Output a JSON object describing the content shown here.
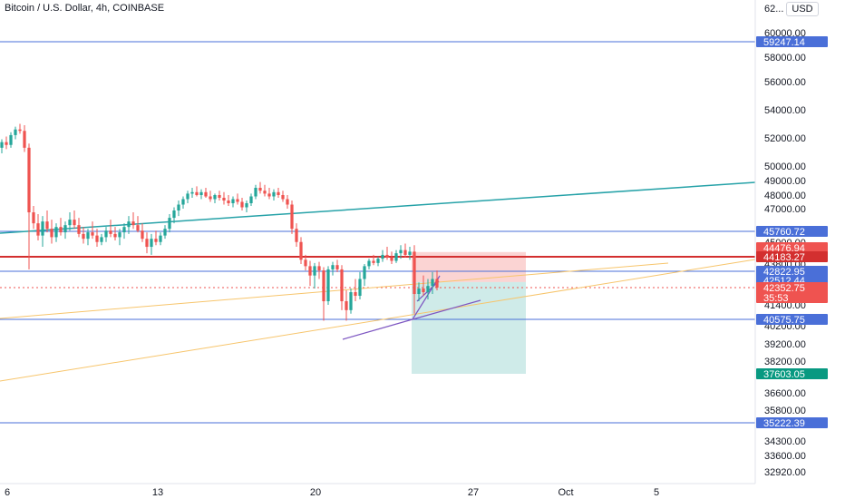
{
  "title": "Bitcoin / U.S. Dollar, 4h, COINBASE",
  "currency": "USD",
  "colors": {
    "up": "#26a69a",
    "down": "#ef5350",
    "horizontal_line": "#4a6fd8",
    "resistance_line": "#d32f2f",
    "trend_line": "#26a2a8",
    "fib_line": "#f7c56c",
    "wedge_line": "#7e57c2",
    "short_stop_zone": "rgba(239,83,80,0.25)",
    "short_target_zone": "rgba(38,166,154,0.22)"
  },
  "chart_data": {
    "type": "candlestick",
    "y_ticks": [
      "62...",
      "60000.00",
      "58000.00",
      "56000.00",
      "54000.00",
      "52000.00",
      "50000.00",
      "49000.00",
      "48000.00",
      "47000.00",
      "45000.00",
      "43800.00",
      "41400.00",
      "40200.00",
      "39200.00",
      "38200.00",
      "36600.00",
      "35800.00",
      "34300.00",
      "33600.00",
      "32920.00"
    ],
    "x_ticks": [
      "6",
      "13",
      "20",
      "27",
      "Oct",
      "5"
    ],
    "price_labels": [
      {
        "text": "59247.14",
        "value": 59247.14,
        "color": "#4a6fd8"
      },
      {
        "text": "45760.72",
        "value": 45760.72,
        "color": "#4a6fd8"
      },
      {
        "text": "44476.94",
        "value": 44476.94,
        "color": "#ef5350"
      },
      {
        "text": "44183.27",
        "value": 44183.27,
        "color": "#d32f2f"
      },
      {
        "text": "42822.95",
        "value": 42822.95,
        "color": "#4a6fd8"
      },
      {
        "text": "42512.44",
        "value": 42512.44,
        "color": "#4a6fd8"
      },
      {
        "text": "42352.75",
        "value": 42352.75,
        "color": "#ef5350",
        "countdown": "35:53"
      },
      {
        "text": "40575.75",
        "value": 40575.75,
        "color": "#4a6fd8"
      },
      {
        "text": "37603.05",
        "value": 37603.05,
        "color": "#089981"
      },
      {
        "text": "35222.39",
        "value": 35222.39,
        "color": "#4a6fd8"
      }
    ],
    "horizontal_levels": [
      59247.14,
      45760.72,
      44183.27,
      42822.95,
      40575.75,
      35222.39
    ],
    "position": {
      "kind": "short",
      "entry": 42512.44,
      "stop": 44476.94,
      "target": 37603.05
    },
    "candles": [
      {
        "o": 51300,
        "h": 51900,
        "l": 50900,
        "c": 51700
      },
      {
        "o": 51700,
        "h": 52100,
        "l": 51200,
        "c": 51500
      },
      {
        "o": 51500,
        "h": 52400,
        "l": 51300,
        "c": 52200
      },
      {
        "o": 52200,
        "h": 52800,
        "l": 51900,
        "c": 52600
      },
      {
        "o": 52600,
        "h": 53000,
        "l": 52300,
        "c": 52500
      },
      {
        "o": 52500,
        "h": 52900,
        "l": 51000,
        "c": 51300
      },
      {
        "o": 51300,
        "h": 51600,
        "l": 43000,
        "c": 46800
      },
      {
        "o": 46800,
        "h": 47200,
        "l": 45900,
        "c": 46200
      },
      {
        "o": 46200,
        "h": 46700,
        "l": 45200,
        "c": 45500
      },
      {
        "o": 45500,
        "h": 46600,
        "l": 44800,
        "c": 46300
      },
      {
        "o": 46300,
        "h": 46900,
        "l": 45700,
        "c": 45900
      },
      {
        "o": 45900,
        "h": 46400,
        "l": 45000,
        "c": 45400
      },
      {
        "o": 45400,
        "h": 46200,
        "l": 45100,
        "c": 46000
      },
      {
        "o": 46000,
        "h": 46500,
        "l": 45500,
        "c": 45700
      },
      {
        "o": 45700,
        "h": 46300,
        "l": 45300,
        "c": 46100
      },
      {
        "o": 46100,
        "h": 46800,
        "l": 45800,
        "c": 46400
      },
      {
        "o": 46400,
        "h": 46900,
        "l": 45900,
        "c": 46100
      },
      {
        "o": 46100,
        "h": 46500,
        "l": 45400,
        "c": 45600
      },
      {
        "o": 45600,
        "h": 46000,
        "l": 45000,
        "c": 45300
      },
      {
        "o": 45300,
        "h": 45900,
        "l": 44900,
        "c": 45700
      },
      {
        "o": 45700,
        "h": 46300,
        "l": 45300,
        "c": 45500
      },
      {
        "o": 45500,
        "h": 45900,
        "l": 44800,
        "c": 45100
      },
      {
        "o": 45100,
        "h": 45600,
        "l": 44900,
        "c": 45400
      },
      {
        "o": 45400,
        "h": 46000,
        "l": 45100,
        "c": 45800
      },
      {
        "o": 45800,
        "h": 46400,
        "l": 45400,
        "c": 45600
      },
      {
        "o": 45600,
        "h": 46000,
        "l": 45200,
        "c": 45400
      },
      {
        "o": 45400,
        "h": 45900,
        "l": 44900,
        "c": 45700
      },
      {
        "o": 45700,
        "h": 46200,
        "l": 45300,
        "c": 46000
      },
      {
        "o": 46000,
        "h": 46600,
        "l": 45600,
        "c": 46300
      },
      {
        "o": 46300,
        "h": 46800,
        "l": 45900,
        "c": 46100
      },
      {
        "o": 46100,
        "h": 46600,
        "l": 45700,
        "c": 45800
      },
      {
        "o": 45800,
        "h": 46200,
        "l": 45100,
        "c": 45300
      },
      {
        "o": 45300,
        "h": 45700,
        "l": 44400,
        "c": 44800
      },
      {
        "o": 44800,
        "h": 45600,
        "l": 44300,
        "c": 45300
      },
      {
        "o": 45300,
        "h": 45800,
        "l": 44900,
        "c": 45100
      },
      {
        "o": 45100,
        "h": 45700,
        "l": 44900,
        "c": 45500
      },
      {
        "o": 45500,
        "h": 46100,
        "l": 45300,
        "c": 45900
      },
      {
        "o": 45900,
        "h": 46700,
        "l": 45700,
        "c": 46500
      },
      {
        "o": 46500,
        "h": 47100,
        "l": 46200,
        "c": 46900
      },
      {
        "o": 46900,
        "h": 47600,
        "l": 46600,
        "c": 47300
      },
      {
        "o": 47300,
        "h": 47900,
        "l": 47000,
        "c": 47700
      },
      {
        "o": 47700,
        "h": 48300,
        "l": 47400,
        "c": 48100
      },
      {
        "o": 48100,
        "h": 48500,
        "l": 47800,
        "c": 48200
      },
      {
        "o": 48200,
        "h": 48600,
        "l": 47900,
        "c": 48000
      },
      {
        "o": 48000,
        "h": 48400,
        "l": 47700,
        "c": 48200
      },
      {
        "o": 48200,
        "h": 48500,
        "l": 47800,
        "c": 47900
      },
      {
        "o": 47900,
        "h": 48300,
        "l": 47500,
        "c": 47700
      },
      {
        "o": 47700,
        "h": 48100,
        "l": 47400,
        "c": 48000
      },
      {
        "o": 48000,
        "h": 48300,
        "l": 47600,
        "c": 47800
      },
      {
        "o": 47800,
        "h": 48200,
        "l": 47300,
        "c": 47600
      },
      {
        "o": 47600,
        "h": 48000,
        "l": 47200,
        "c": 47400
      },
      {
        "o": 47400,
        "h": 47900,
        "l": 47100,
        "c": 47700
      },
      {
        "o": 47700,
        "h": 48100,
        "l": 47300,
        "c": 47500
      },
      {
        "o": 47500,
        "h": 47800,
        "l": 46900,
        "c": 47100
      },
      {
        "o": 47100,
        "h": 47600,
        "l": 46800,
        "c": 47400
      },
      {
        "o": 47400,
        "h": 48100,
        "l": 47200,
        "c": 47900
      },
      {
        "o": 47900,
        "h": 48700,
        "l": 47700,
        "c": 48500
      },
      {
        "o": 48500,
        "h": 48900,
        "l": 48100,
        "c": 48300
      },
      {
        "o": 48300,
        "h": 48700,
        "l": 47900,
        "c": 48100
      },
      {
        "o": 48100,
        "h": 48500,
        "l": 47700,
        "c": 47900
      },
      {
        "o": 47900,
        "h": 48400,
        "l": 47600,
        "c": 48200
      },
      {
        "o": 48200,
        "h": 48500,
        "l": 47800,
        "c": 48000
      },
      {
        "o": 48000,
        "h": 48300,
        "l": 47500,
        "c": 47700
      },
      {
        "o": 47700,
        "h": 48000,
        "l": 47000,
        "c": 47300
      },
      {
        "o": 47300,
        "h": 47600,
        "l": 45600,
        "c": 45900
      },
      {
        "o": 45900,
        "h": 46200,
        "l": 44800,
        "c": 45100
      },
      {
        "o": 45100,
        "h": 45400,
        "l": 43500,
        "c": 43900
      },
      {
        "o": 43900,
        "h": 44300,
        "l": 42900,
        "c": 43300
      },
      {
        "o": 43300,
        "h": 43800,
        "l": 42400,
        "c": 42700
      },
      {
        "o": 42700,
        "h": 43600,
        "l": 42300,
        "c": 43300
      },
      {
        "o": 43300,
        "h": 43700,
        "l": 42600,
        "c": 42900
      },
      {
        "o": 42900,
        "h": 43200,
        "l": 40500,
        "c": 41600
      },
      {
        "o": 41600,
        "h": 43300,
        "l": 41400,
        "c": 43000
      },
      {
        "o": 43000,
        "h": 43700,
        "l": 42700,
        "c": 43400
      },
      {
        "o": 43400,
        "h": 43900,
        "l": 42800,
        "c": 43000
      },
      {
        "o": 43000,
        "h": 43400,
        "l": 41100,
        "c": 41600
      },
      {
        "o": 41600,
        "h": 42200,
        "l": 40500,
        "c": 41100
      },
      {
        "o": 41100,
        "h": 42300,
        "l": 40900,
        "c": 42100
      },
      {
        "o": 42100,
        "h": 42600,
        "l": 41600,
        "c": 41900
      },
      {
        "o": 41900,
        "h": 42800,
        "l": 41700,
        "c": 42600
      },
      {
        "o": 42600,
        "h": 43500,
        "l": 42400,
        "c": 43300
      },
      {
        "o": 43300,
        "h": 44000,
        "l": 43000,
        "c": 43800
      },
      {
        "o": 43800,
        "h": 44300,
        "l": 43400,
        "c": 43600
      },
      {
        "o": 43600,
        "h": 44200,
        "l": 43300,
        "c": 44000
      },
      {
        "o": 44000,
        "h": 44600,
        "l": 43700,
        "c": 44300
      },
      {
        "o": 44300,
        "h": 44800,
        "l": 43900,
        "c": 44100
      },
      {
        "o": 44100,
        "h": 44500,
        "l": 43500,
        "c": 43800
      },
      {
        "o": 43800,
        "h": 44600,
        "l": 43600,
        "c": 44400
      },
      {
        "o": 44400,
        "h": 44900,
        "l": 44000,
        "c": 44600
      },
      {
        "o": 44600,
        "h": 45000,
        "l": 44100,
        "c": 44300
      },
      {
        "o": 44300,
        "h": 44800,
        "l": 43900,
        "c": 44500
      },
      {
        "o": 44500,
        "h": 44900,
        "l": 40900,
        "c": 42000
      },
      {
        "o": 42000,
        "h": 42500,
        "l": 41600,
        "c": 42300
      },
      {
        "o": 42300,
        "h": 42700,
        "l": 41900,
        "c": 42100
      },
      {
        "o": 42100,
        "h": 42600,
        "l": 41700,
        "c": 42400
      },
      {
        "o": 42400,
        "h": 42800,
        "l": 42000,
        "c": 42600
      },
      {
        "o": 42600,
        "h": 42900,
        "l": 42200,
        "c": 42350
      }
    ]
  }
}
